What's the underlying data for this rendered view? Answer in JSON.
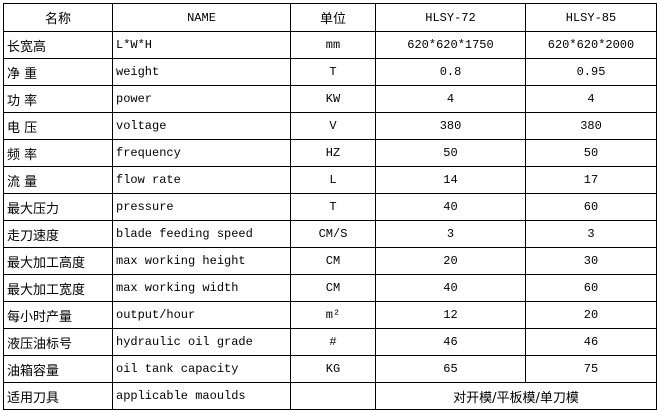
{
  "header": {
    "name_cn": "名称",
    "name_en": "NAME",
    "unit": "单位",
    "model_a": "HLSY-72",
    "model_b": "HLSY-85"
  },
  "rows": [
    {
      "cn": "长宽高",
      "en": "L*W*H",
      "unit": "mm",
      "a": "620*620*1750",
      "b": "620*620*2000"
    },
    {
      "cn": "净  重",
      "en": "weight",
      "unit": "T",
      "a": "0.8",
      "b": "0.95"
    },
    {
      "cn": "功  率",
      "en": "power",
      "unit": "KW",
      "a": "4",
      "b": "4"
    },
    {
      "cn": "电  压",
      "en": "voltage",
      "unit": "V",
      "a": "380",
      "b": "380"
    },
    {
      "cn": "频  率",
      "en": "frequency",
      "unit": "HZ",
      "a": "50",
      "b": "50"
    },
    {
      "cn": "流  量",
      "en": "flow rate",
      "unit": "L",
      "a": "14",
      "b": "17"
    },
    {
      "cn": "最大压力",
      "en": "pressure",
      "unit": "T",
      "a": "40",
      "b": "60"
    },
    {
      "cn": "走刀速度",
      "en": "blade feeding speed",
      "unit": "CM/S",
      "a": "3",
      "b": "3"
    },
    {
      "cn": "最大加工高度",
      "en": "max working height",
      "unit": "CM",
      "a": "20",
      "b": "30"
    },
    {
      "cn": "最大加工宽度",
      "en": "max working width",
      "unit": "CM",
      "a": "40",
      "b": "60"
    },
    {
      "cn": "每小时产量",
      "en": "output/hour",
      "unit": "m²",
      "a": "12",
      "b": "20"
    },
    {
      "cn": "液压油标号",
      "en": "hydraulic oil grade",
      "unit": "#",
      "a": "46",
      "b": "46"
    },
    {
      "cn": "油箱容量",
      "en": "oil tank capacity",
      "unit": "KG",
      "a": "65",
      "b": "75"
    }
  ],
  "last_row": {
    "cn": "适用刀具",
    "en": "applicable maoulds",
    "unit": "",
    "ab": "对开模/平板模/单刀模"
  }
}
